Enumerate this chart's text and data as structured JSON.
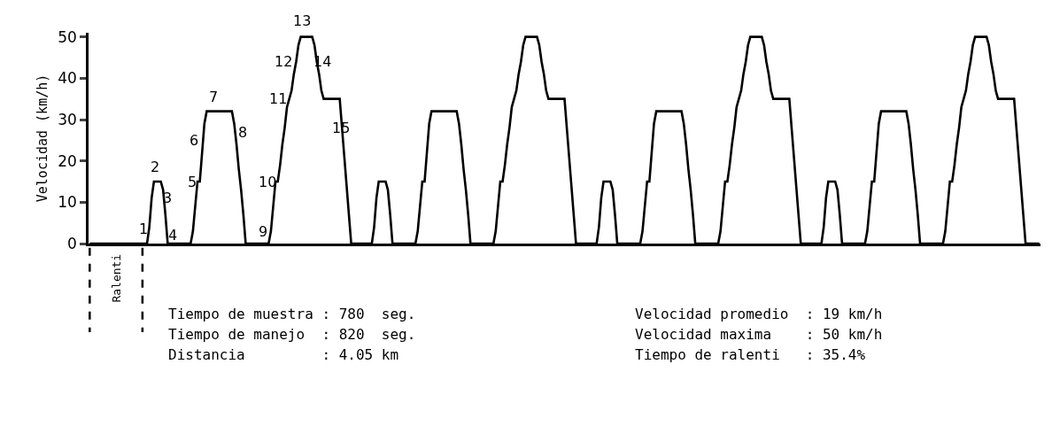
{
  "chart_data": {
    "type": "line",
    "ylabel": "Velocidad (km/h)",
    "categories": [
      null,
      null,
      null,
      null,
      null,
      null,
      null,
      null,
      null,
      null,
      null,
      null,
      null,
      null,
      null,
      null,
      null,
      null,
      null,
      null,
      null,
      null,
      null,
      null,
      null,
      null,
      null,
      null,
      null,
      null,
      null,
      null,
      null,
      null,
      null,
      null,
      null,
      null,
      null,
      null,
      null,
      null,
      null,
      null,
      null,
      null,
      null,
      null,
      null,
      null,
      null,
      null,
      null,
      null,
      null,
      null,
      null,
      null,
      null,
      null,
      null,
      null,
      null,
      null,
      null,
      null,
      null,
      null,
      null,
      null,
      null,
      null,
      null,
      null,
      null,
      null,
      null,
      null,
      null,
      null,
      null,
      null,
      null,
      null,
      null,
      null,
      null,
      null,
      null,
      null,
      null,
      null,
      null,
      null,
      null,
      null,
      null,
      null,
      null,
      null,
      null,
      null,
      null,
      null,
      null,
      null,
      null,
      null,
      null,
      null,
      null,
      null,
      null,
      null,
      null,
      null,
      null,
      null,
      null,
      null,
      null,
      null,
      null,
      null,
      null,
      null,
      null,
      null,
      null,
      null,
      null,
      null,
      null,
      null,
      null,
      null,
      null,
      null,
      null,
      null,
      null,
      null,
      null,
      null,
      null,
      null,
      null,
      null,
      null,
      null,
      null,
      null,
      null,
      null,
      null,
      null,
      null,
      null,
      null,
      null,
      null,
      null,
      null,
      null,
      null,
      null,
      null,
      null,
      null,
      null,
      null,
      null,
      null,
      null,
      null,
      null,
      null,
      null,
      null,
      null,
      null,
      null,
      null,
      null,
      null,
      null,
      null,
      null,
      null,
      null,
      null,
      null,
      null,
      null,
      null,
      null,
      null,
      null,
      null,
      null,
      null,
      null,
      null,
      null,
      null,
      null,
      null,
      null,
      null,
      null,
      null,
      null,
      null,
      null,
      null,
      null,
      null,
      null,
      null,
      null,
      null,
      null,
      null,
      null,
      null,
      null,
      null,
      null,
      null,
      null,
      null,
      null,
      null,
      null,
      null,
      null,
      null,
      null,
      null,
      null,
      null,
      null,
      null,
      null,
      null,
      null,
      null,
      null,
      null,
      null,
      null,
      null,
      null,
      null,
      null,
      null,
      null,
      null,
      null,
      null,
      null,
      null,
      null,
      null,
      null,
      null,
      null,
      null,
      null,
      null,
      null,
      null,
      null,
      null,
      null,
      null,
      null,
      null,
      null,
      null,
      null,
      null,
      null,
      null,
      null,
      null,
      null,
      null,
      null,
      null,
      null,
      null,
      null,
      null,
      null,
      null,
      null,
      null,
      null,
      null,
      null,
      null,
      null,
      null,
      null,
      null,
      null,
      null,
      null,
      null,
      null,
      null,
      null,
      null,
      null,
      null,
      null,
      null,
      null,
      null,
      null,
      null,
      null,
      null,
      null,
      null,
      null,
      null,
      null,
      null,
      null,
      null,
      null,
      null,
      null,
      null,
      null,
      null,
      null,
      null,
      null,
      null,
      null,
      null,
      null,
      null,
      null,
      null,
      null,
      null,
      null,
      null,
      null,
      null,
      null,
      null,
      null,
      null,
      null,
      null,
      null,
      null,
      null,
      null,
      null,
      null,
      null,
      null,
      null,
      null,
      null,
      null,
      null,
      null,
      null,
      null,
      null,
      null,
      null,
      null,
      null,
      null,
      null,
      null,
      null,
      null,
      null,
      null,
      null,
      null,
      null,
      null,
      null,
      null,
      null,
      null,
      null,
      null,
      null,
      null,
      null,
      null,
      null,
      null,
      null,
      null,
      null,
      null,
      null,
      null,
      null,
      null,
      null,
      null,
      null
    ],
    "series": [
      {
        "color": "#000000",
        "values": [
          0,
          0,
          0,
          0,
          0,
          0,
          0,
          0,
          0,
          0,
          0,
          0,
          0,
          0,
          0,
          0,
          0,
          0,
          0,
          0,
          0,
          0,
          0,
          0,
          0,
          0,
          4,
          11,
          15,
          15,
          15,
          15,
          13,
          7,
          0,
          0,
          0,
          0,
          0,
          0,
          0,
          0,
          0,
          0,
          0,
          3,
          9,
          15,
          15,
          22,
          29,
          32,
          32,
          32,
          32,
          32,
          32,
          32,
          32,
          32,
          32,
          32,
          32,
          29,
          24,
          18,
          13,
          7,
          0,
          0,
          0,
          0,
          0,
          0,
          0,
          0,
          0,
          0,
          0,
          3,
          9,
          15,
          15,
          19,
          24,
          28,
          33,
          35,
          37,
          41,
          44,
          48,
          50,
          50,
          50,
          50,
          50,
          50,
          48,
          44,
          41,
          37,
          35,
          35,
          35,
          35,
          35,
          35,
          35,
          35,
          28,
          21,
          14,
          7,
          0,
          0,
          0,
          0,
          0,
          0,
          0,
          0,
          0,
          0,
          4,
          11,
          15,
          15,
          15,
          15,
          13,
          7,
          0,
          0,
          0,
          0,
          0,
          0,
          0,
          0,
          0,
          0,
          0,
          3,
          9,
          15,
          15,
          22,
          29,
          32,
          32,
          32,
          32,
          32,
          32,
          32,
          32,
          32,
          32,
          32,
          32,
          29,
          24,
          18,
          13,
          7,
          0,
          0,
          0,
          0,
          0,
          0,
          0,
          0,
          0,
          0,
          0,
          3,
          9,
          15,
          15,
          19,
          24,
          28,
          33,
          35,
          37,
          41,
          44,
          48,
          50,
          50,
          50,
          50,
          50,
          50,
          48,
          44,
          41,
          37,
          35,
          35,
          35,
          35,
          35,
          35,
          35,
          35,
          28,
          21,
          14,
          7,
          0,
          0,
          0,
          0,
          0,
          0,
          0,
          0,
          0,
          0,
          4,
          11,
          15,
          15,
          15,
          15,
          13,
          7,
          0,
          0,
          0,
          0,
          0,
          0,
          0,
          0,
          0,
          0,
          0,
          3,
          9,
          15,
          15,
          22,
          29,
          32,
          32,
          32,
          32,
          32,
          32,
          32,
          32,
          32,
          32,
          32,
          32,
          29,
          24,
          18,
          13,
          7,
          0,
          0,
          0,
          0,
          0,
          0,
          0,
          0,
          0,
          0,
          0,
          3,
          9,
          15,
          15,
          19,
          24,
          28,
          33,
          35,
          37,
          41,
          44,
          48,
          50,
          50,
          50,
          50,
          50,
          50,
          48,
          44,
          41,
          37,
          35,
          35,
          35,
          35,
          35,
          35,
          35,
          35,
          28,
          21,
          14,
          7,
          0,
          0,
          0,
          0,
          0,
          0,
          0,
          0,
          0,
          0,
          4,
          11,
          15,
          15,
          15,
          15,
          13,
          7,
          0,
          0,
          0,
          0,
          0,
          0,
          0,
          0,
          0,
          0,
          0,
          3,
          9,
          15,
          15,
          22,
          29,
          32,
          32,
          32,
          32,
          32,
          32,
          32,
          32,
          32,
          32,
          32,
          32,
          29,
          24,
          18,
          13,
          7,
          0,
          0,
          0,
          0,
          0,
          0,
          0,
          0,
          0,
          0,
          0,
          3,
          9,
          15,
          15,
          19,
          24,
          28,
          33,
          35,
          37,
          41,
          44,
          48,
          50,
          50,
          50,
          50,
          50,
          50,
          48,
          44,
          41,
          37,
          35,
          35,
          35,
          35,
          35,
          35,
          35,
          35,
          28,
          21,
          14,
          7,
          0,
          0,
          0,
          0,
          0,
          0,
          0
        ]
      }
    ],
    "ylim": [
      0,
      51
    ],
    "yticks": [
      0,
      10,
      20,
      30,
      40,
      50
    ],
    "tick_labels": "y",
    "annotations": [
      "1",
      "2",
      "3",
      "4",
      "5",
      "6",
      "7",
      "8",
      "9",
      "10",
      "11",
      "12",
      "13",
      "14",
      "15",
      "Ralenti",
      "Tiempo de muestra : 780  seg.",
      "Tiempo de manejo  : 820  seg.",
      "Distancia         : 4.05 km",
      "Velocidad promedio  : 19 km/h",
      "Velocidad maxima    : 50 km/h",
      "Tiempo de ralenti   : 35.4%"
    ]
  }
}
